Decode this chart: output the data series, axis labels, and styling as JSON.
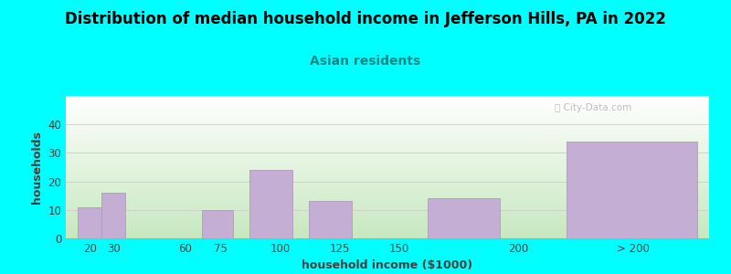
{
  "title": "Distribution of median household income in Jefferson Hills, PA in 2022",
  "subtitle": "Asian residents",
  "xlabel": "household income ($1000)",
  "ylabel": "households",
  "background_outer": "#00FFFF",
  "background_inner_top_left": "#ffffff",
  "background_inner_bottom_right": "#c8e8c0",
  "bar_color": "#c4aed4",
  "bar_edge_color": "#b09abe",
  "title_color": "#000000",
  "subtitle_color": "#008888",
  "axis_label_color": "#404040",
  "tick_label_color": "#404040",
  "grid_color": "#cccccc",
  "values": [
    11,
    16,
    0,
    10,
    24,
    13,
    0,
    14,
    34
  ],
  "bar_lefts": [
    15,
    25,
    45,
    67,
    87,
    112,
    137,
    162,
    220
  ],
  "bar_widths": [
    10,
    10,
    5,
    13,
    18,
    18,
    18,
    30,
    55
  ],
  "xlim": [
    10,
    280
  ],
  "ylim": [
    0,
    50
  ],
  "yticks": [
    0,
    10,
    20,
    30,
    40
  ],
  "xtick_labels": [
    "20",
    "30",
    "60",
    "75",
    "100",
    "125",
    "150",
    "200",
    "> 200"
  ],
  "xtick_positions": [
    20,
    30,
    60,
    75,
    100,
    125,
    150,
    200,
    248
  ],
  "title_fontsize": 12,
  "subtitle_fontsize": 10,
  "label_fontsize": 9,
  "tick_fontsize": 8.5
}
